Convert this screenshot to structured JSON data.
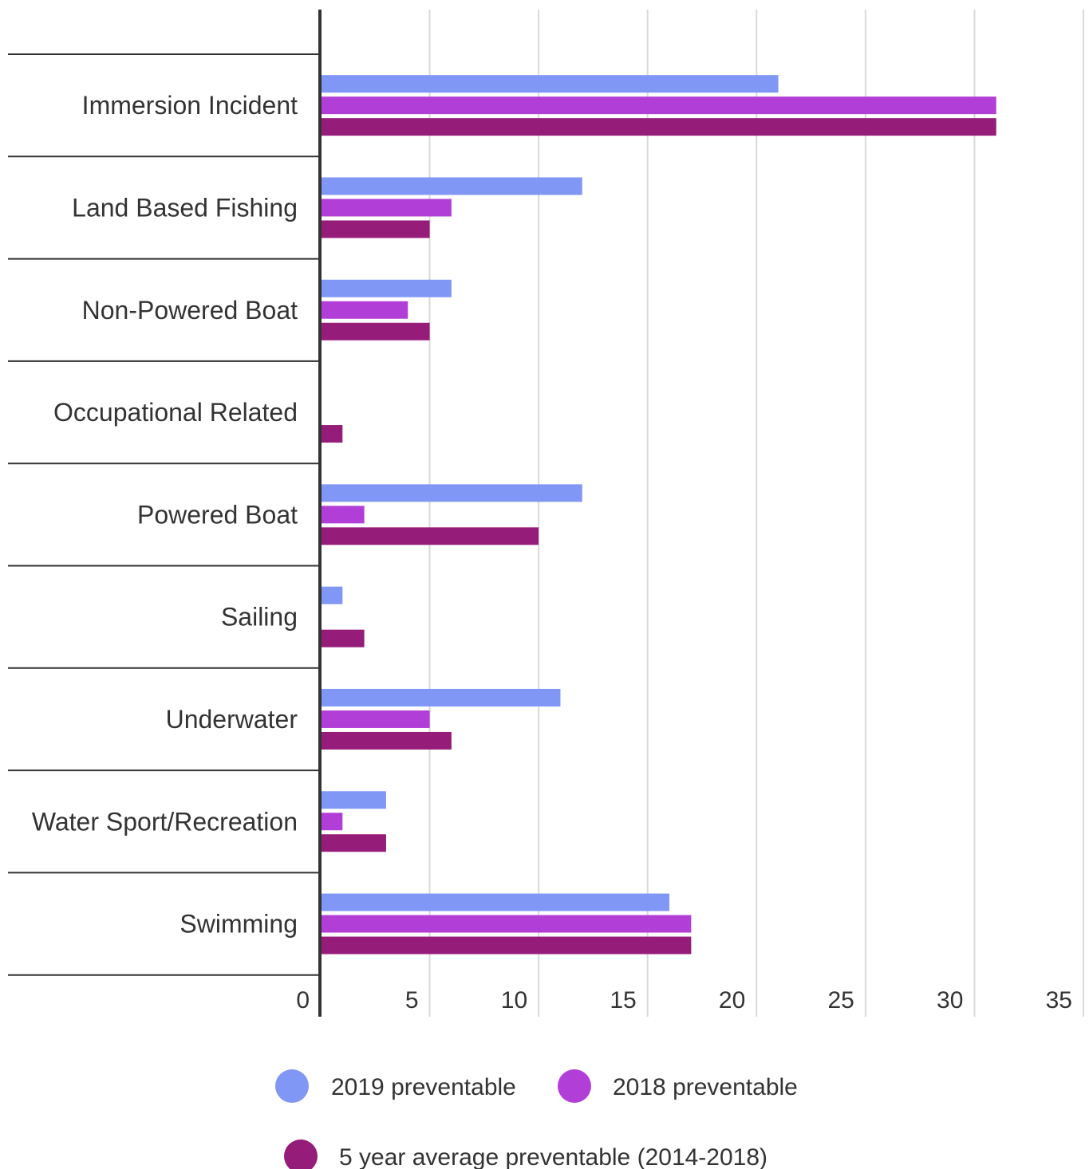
{
  "chart_data": {
    "type": "bar",
    "orientation": "horizontal",
    "categories": [
      "Immersion Incident",
      "Land Based Fishing",
      "Non-Powered Boat",
      "Occupational Related",
      "Powered Boat",
      "Sailing",
      "Underwater",
      "Water Sport/Recreation",
      "Swimming"
    ],
    "series": [
      {
        "name": "2019 preventable",
        "color": "#8097f5",
        "values": [
          21,
          12,
          6,
          0,
          12,
          1,
          11,
          3,
          16
        ]
      },
      {
        "name": "2018 preventable",
        "color": "#b23ed8",
        "values": [
          31,
          6,
          4,
          0,
          2,
          0,
          5,
          1,
          17
        ]
      },
      {
        "name": "5 year average preventable (2014-2018)",
        "color": "#961c7a",
        "values": [
          31,
          5,
          5,
          1,
          10,
          2,
          6,
          3,
          17
        ]
      }
    ],
    "xlim": [
      0,
      35
    ],
    "xticks": [
      "0",
      "5",
      "10",
      "15",
      "20",
      "25",
      "30",
      "35"
    ],
    "grid": true,
    "legend_position": "bottom"
  }
}
